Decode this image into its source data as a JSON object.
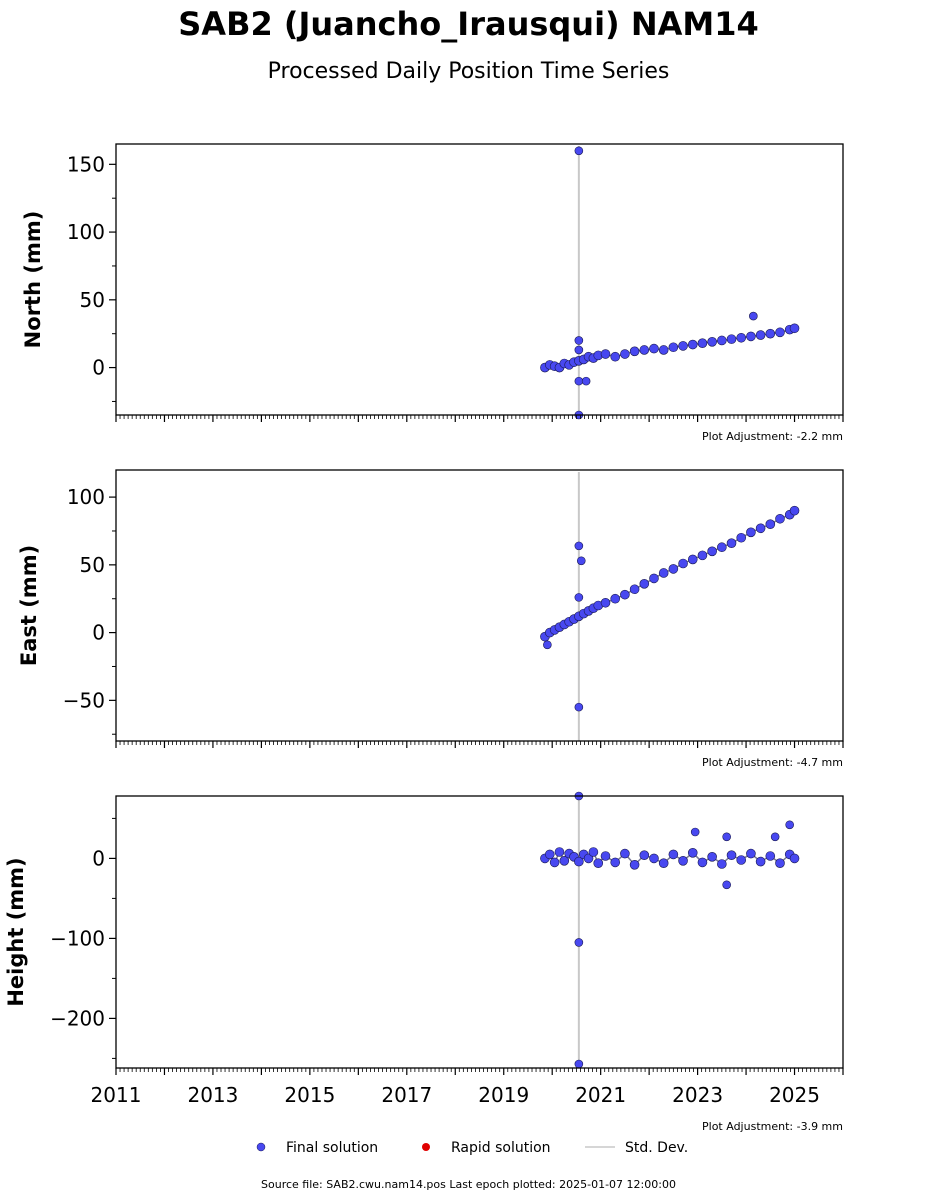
{
  "title": "SAB2 (Juancho_Irausqui) NAM14",
  "subtitle": "Processed Daily Position Time Series",
  "legend": {
    "final": "Final solution",
    "rapid": "Rapid solution",
    "std": "Std. Dev."
  },
  "footer": "Source file: SAB2.cwu.nam14.pos  Last epoch plotted: 2025-01-07 12:00:00",
  "colors": {
    "final_fill": "#4848f0",
    "final_edge": "#1a1a50",
    "rapid": "#e00000",
    "std": "#c8c8c8"
  },
  "chart_data": {
    "type": "scatter",
    "xlim": [
      2011,
      2026
    ],
    "x_ticks": [
      2011,
      2013,
      2015,
      2017,
      2019,
      2021,
      2023,
      2025
    ],
    "x_tick_labels": [
      "2011",
      "2013",
      "2015",
      "2017",
      "2019",
      "2021",
      "2023",
      "2025"
    ],
    "last_epoch": "2025-01-07 12:00:00",
    "panels": [
      {
        "ylabel": "North (mm)",
        "ylim": [
          -35,
          165
        ],
        "yticks": [
          0,
          50,
          100,
          150
        ],
        "ytick_labels": [
          "0",
          "50",
          "100",
          "150"
        ],
        "adjustment": "Plot Adjustment: -2.2 mm",
        "series": [
          {
            "name": "Final solution",
            "x": [
              2019.85,
              2019.95,
              2020.05,
              2020.15,
              2020.25,
              2020.35,
              2020.45,
              2020.55,
              2020.65,
              2020.75,
              2020.85,
              2020.95,
              2021.1,
              2021.3,
              2021.5,
              2021.7,
              2021.9,
              2022.1,
              2022.3,
              2022.5,
              2022.7,
              2022.9,
              2023.1,
              2023.3,
              2023.5,
              2023.7,
              2023.9,
              2024.1,
              2024.3,
              2024.5,
              2024.7,
              2024.9,
              2025.0
            ],
            "y": [
              0,
              2,
              1,
              0,
              3,
              2,
              4,
              5,
              6,
              8,
              7,
              9,
              10,
              8,
              10,
              12,
              13,
              14,
              13,
              15,
              16,
              17,
              18,
              19,
              20,
              21,
              22,
              23,
              24,
              25,
              26,
              28,
              29
            ]
          }
        ],
        "outliers": {
          "x": [
            2020.55,
            2020.55,
            2020.55,
            2020.55,
            2020.55,
            2020.7,
            2024.15
          ],
          "y": [
            160,
            20,
            13,
            -10,
            -35,
            -10,
            38
          ]
        }
      },
      {
        "ylabel": "East (mm)",
        "ylim": [
          -80,
          120
        ],
        "yticks": [
          -50,
          0,
          50,
          100
        ],
        "ytick_labels": [
          "−50",
          "0",
          "50",
          "100"
        ],
        "adjustment": "Plot Adjustment: -4.7 mm",
        "series": [
          {
            "name": "Final solution",
            "x": [
              2019.85,
              2019.95,
              2020.05,
              2020.15,
              2020.25,
              2020.35,
              2020.45,
              2020.55,
              2020.65,
              2020.75,
              2020.85,
              2020.95,
              2021.1,
              2021.3,
              2021.5,
              2021.7,
              2021.9,
              2022.1,
              2022.3,
              2022.5,
              2022.7,
              2022.9,
              2023.1,
              2023.3,
              2023.5,
              2023.7,
              2023.9,
              2024.1,
              2024.3,
              2024.5,
              2024.7,
              2024.9,
              2025.0
            ],
            "y": [
              -3,
              0,
              2,
              4,
              6,
              8,
              10,
              12,
              14,
              16,
              18,
              20,
              22,
              25,
              28,
              32,
              36,
              40,
              44,
              47,
              51,
              54,
              57,
              60,
              63,
              66,
              70,
              74,
              77,
              80,
              84,
              87,
              90
            ]
          }
        ],
        "outliers": {
          "x": [
            2020.55,
            2020.6,
            2020.55,
            2020.55,
            2019.9
          ],
          "y": [
            64,
            53,
            26,
            -55,
            -9
          ]
        }
      },
      {
        "ylabel": "Height (mm)",
        "ylim": [
          -262,
          78
        ],
        "yticks": [
          -200,
          -100,
          0
        ],
        "ytick_labels": [
          "−200",
          "−100",
          "0"
        ],
        "adjustment": "Plot Adjustment: -3.9 mm",
        "series": [
          {
            "name": "Final solution",
            "x": [
              2019.85,
              2019.95,
              2020.05,
              2020.15,
              2020.25,
              2020.35,
              2020.45,
              2020.55,
              2020.65,
              2020.75,
              2020.85,
              2020.95,
              2021.1,
              2021.3,
              2021.5,
              2021.7,
              2021.9,
              2022.1,
              2022.3,
              2022.5,
              2022.7,
              2022.9,
              2023.1,
              2023.3,
              2023.5,
              2023.7,
              2023.9,
              2024.1,
              2024.3,
              2024.5,
              2024.7,
              2024.9,
              2025.0
            ],
            "y": [
              0,
              5,
              -5,
              8,
              -3,
              6,
              2,
              -4,
              5,
              0,
              8,
              -6,
              3,
              -5,
              6,
              -8,
              4,
              0,
              -6,
              5,
              -3,
              7,
              -5,
              2,
              -7,
              4,
              -2,
              6,
              -4,
              3,
              -6,
              5,
              0
            ]
          }
        ],
        "outliers": {
          "x": [
            2020.55,
            2020.55,
            2020.55,
            2022.95,
            2023.6,
            2023.6,
            2024.6,
            2024.9
          ],
          "y": [
            78,
            -105,
            -257,
            33,
            27,
            -33,
            27,
            42
          ]
        }
      }
    ]
  }
}
